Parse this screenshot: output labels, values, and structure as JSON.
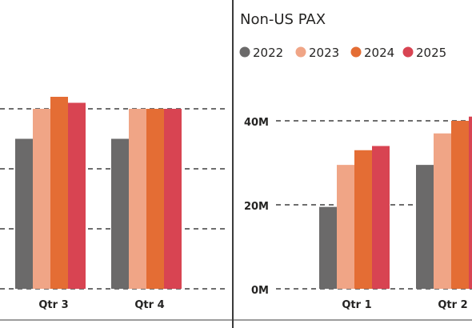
{
  "chart_data": [
    {
      "type": "bar",
      "title": "",
      "categories": [
        "Qtr 3",
        "Qtr 4"
      ],
      "series": [
        {
          "name": "2022",
          "values": [
            25,
            25
          ]
        },
        {
          "name": "2023",
          "values": [
            30,
            30
          ]
        },
        {
          "name": "2024",
          "values": [
            32,
            30
          ]
        },
        {
          "name": "2025",
          "values": [
            31,
            30
          ]
        }
      ],
      "gridlines": [
        10,
        20,
        30
      ],
      "ylim": [
        0,
        30
      ],
      "grid": true
    },
    {
      "type": "bar",
      "title": "Non-US PAX",
      "legend_position": "top-left",
      "categories": [
        "Qtr 1",
        "Qtr 2"
      ],
      "series": [
        {
          "name": "2022",
          "values": [
            19.5,
            29.5
          ]
        },
        {
          "name": "2023",
          "values": [
            29.5,
            37
          ]
        },
        {
          "name": "2024",
          "values": [
            33,
            40
          ]
        },
        {
          "name": "2025",
          "values": [
            34,
            41
          ]
        }
      ],
      "y_ticks": [
        0,
        20,
        40
      ],
      "y_tick_labels": [
        "0M",
        "20M",
        "40M"
      ],
      "ylim": [
        0,
        40
      ],
      "grid": true
    }
  ],
  "colors": {
    "2022": "#6b6a6a",
    "2023": "#f0a586",
    "2024": "#e46d34",
    "2025": "#d84452",
    "grid": "#6e6e6e",
    "divider": "#3a3a3a"
  }
}
